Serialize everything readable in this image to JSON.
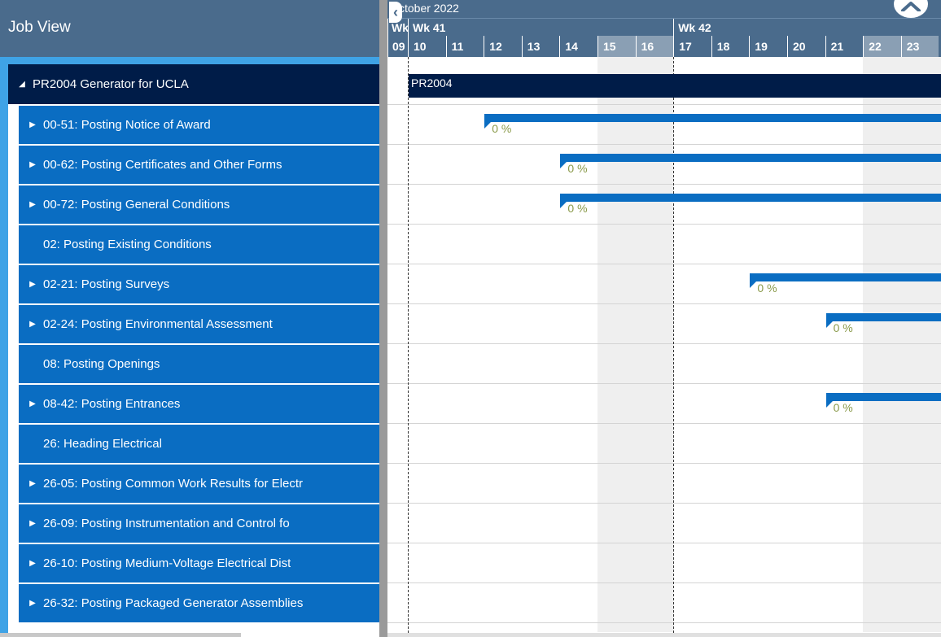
{
  "left_panel": {
    "title": "Job View",
    "rows": [
      {
        "label": "PR2004 Generator for UCLA",
        "level": 0,
        "toggle": "expanded"
      },
      {
        "label": "00-51: Posting Notice of Award",
        "level": 1,
        "toggle": "collapsed"
      },
      {
        "label": "00-62: Posting Certificates and Other Forms",
        "level": 1,
        "toggle": "collapsed"
      },
      {
        "label": "00-72: Posting General Conditions",
        "level": 1,
        "toggle": "collapsed"
      },
      {
        "label": "02: Posting Existing Conditions",
        "level": 1,
        "toggle": "none"
      },
      {
        "label": "02-21: Posting Surveys",
        "level": 1,
        "toggle": "collapsed"
      },
      {
        "label": "02-24: Posting Environmental Assessment",
        "level": 1,
        "toggle": "collapsed"
      },
      {
        "label": "08: Posting Openings",
        "level": 1,
        "toggle": "none"
      },
      {
        "label": "08-42: Posting Entrances",
        "level": 1,
        "toggle": "collapsed"
      },
      {
        "label": "26: Heading Electrical",
        "level": 1,
        "toggle": "none"
      },
      {
        "label": "26-05: Posting Common Work Results for Electr",
        "level": 1,
        "toggle": "collapsed"
      },
      {
        "label": "26-09: Posting Instrumentation and Control fo",
        "level": 1,
        "toggle": "collapsed"
      },
      {
        "label": "26-10: Posting Medium-Voltage Electrical Dist",
        "level": 1,
        "toggle": "collapsed"
      },
      {
        "label": "26-32: Posting Packaged Generator Assemblies",
        "level": 1,
        "toggle": "collapsed"
      }
    ]
  },
  "gantt": {
    "month_label": "ctober 2022",
    "nav_back_icon": "‹",
    "weeks": [
      {
        "label": "Wk",
        "first_day": 9
      },
      {
        "label": "Wk 41",
        "first_day": 10
      },
      {
        "label": "Wk 42",
        "first_day": 17
      }
    ],
    "days": [
      {
        "label": "09",
        "weekend": false
      },
      {
        "label": "10",
        "weekend": false
      },
      {
        "label": "11",
        "weekend": false
      },
      {
        "label": "12",
        "weekend": false
      },
      {
        "label": "13",
        "weekend": false
      },
      {
        "label": "14",
        "weekend": false
      },
      {
        "label": "15",
        "weekend": true
      },
      {
        "label": "16",
        "weekend": true
      },
      {
        "label": "17",
        "weekend": false
      },
      {
        "label": "18",
        "weekend": false
      },
      {
        "label": "19",
        "weekend": false
      },
      {
        "label": "20",
        "weekend": false
      },
      {
        "label": "21",
        "weekend": false
      },
      {
        "label": "22",
        "weekend": true
      },
      {
        "label": "23",
        "weekend": true
      }
    ],
    "summary": {
      "label": "PR2004",
      "row": 0,
      "start_day": 10
    },
    "tasks": [
      {
        "row": 1,
        "start_day": 12,
        "progress_label": "0 %"
      },
      {
        "row": 2,
        "start_day": 14,
        "progress_label": "0 %"
      },
      {
        "row": 3,
        "start_day": 14,
        "progress_label": "0 %"
      },
      {
        "row": 5,
        "start_day": 19,
        "progress_label": "0 %"
      },
      {
        "row": 6,
        "start_day": 21,
        "progress_label": "0 %"
      },
      {
        "row": 8,
        "start_day": 21,
        "progress_label": "0 %"
      }
    ]
  },
  "colors": {
    "header": "#4a6b8c",
    "accent": "#3fa3e6",
    "summary": "#001c48",
    "task": "#0a6dc2",
    "progress_text": "#8a9a4a"
  }
}
